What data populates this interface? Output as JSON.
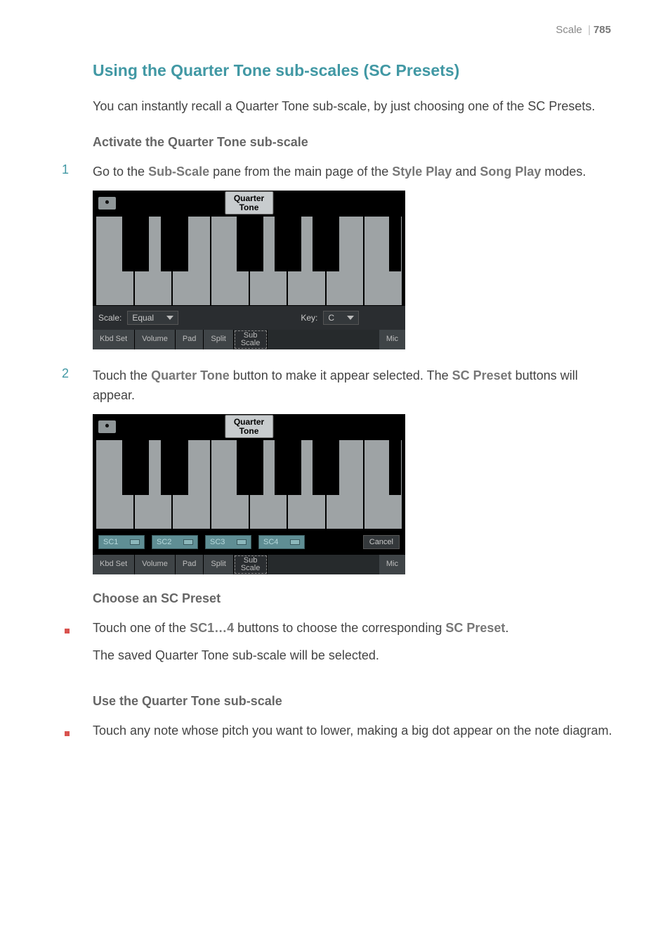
{
  "page": {
    "section_label": "Scale",
    "number": "785"
  },
  "title": "Using the Quarter Tone sub-scales (SC Presets)",
  "intro": "You can instantly recall a Quarter Tone sub-scale, by just choosing one of the SC Presets.",
  "heading_activate": "Activate the Quarter Tone sub-scale",
  "step1": {
    "pre": "Go to the ",
    "b1": "Sub-Scale",
    "mid1": " pane from the main page of the ",
    "b2": "Style Play",
    "mid2": " and ",
    "b3": "Song Play",
    "post": " modes."
  },
  "step2": {
    "pre": "Touch the ",
    "b1": "Quarter Tone",
    "mid1": " button to make it appear selected. The ",
    "b2": "SC Preset",
    "post": " buttons will appear."
  },
  "heading_choose": "Choose an SC Preset",
  "bullet1": {
    "pre": "Touch one of the ",
    "b1": "SC1…4",
    "mid1": " buttons to choose the corresponding ",
    "b2": "SC Preset",
    "post": ".",
    "line2": "The saved Quarter Tone sub-scale will be selected."
  },
  "heading_use": "Use the Quarter Tone sub-scale",
  "bullet2": "Touch any note whose pitch you want to lower, making a big dot appear on the note diagram.",
  "shot": {
    "qt_line1": "Quarter",
    "qt_line2": "Tone",
    "scale_label": "Scale:",
    "scale_value": "Equal",
    "key_label": "Key:",
    "key_value": "C",
    "tabs": {
      "kbd": "Kbd Set",
      "vol": "Volume",
      "pad": "Pad",
      "split": "Split",
      "sub": "Sub\nScale",
      "mic": "Mic"
    },
    "sc1": "SC1",
    "sc2": "SC2",
    "sc3": "SC3",
    "sc4": "SC4",
    "cancel": "Cancel",
    "white_key_color": "#9ea3a5",
    "black_key_color": "#000000",
    "panel_bg": "#2a2d30",
    "sc_bg": "#5f8e94",
    "black_keys_left_pct": [
      8.7,
      21.3,
      46.0,
      58.3,
      70.7,
      95.6
    ],
    "black_keys_width_pct": [
      8.8,
      8.8,
      8.8,
      8.8,
      8.8,
      4.0
    ]
  }
}
